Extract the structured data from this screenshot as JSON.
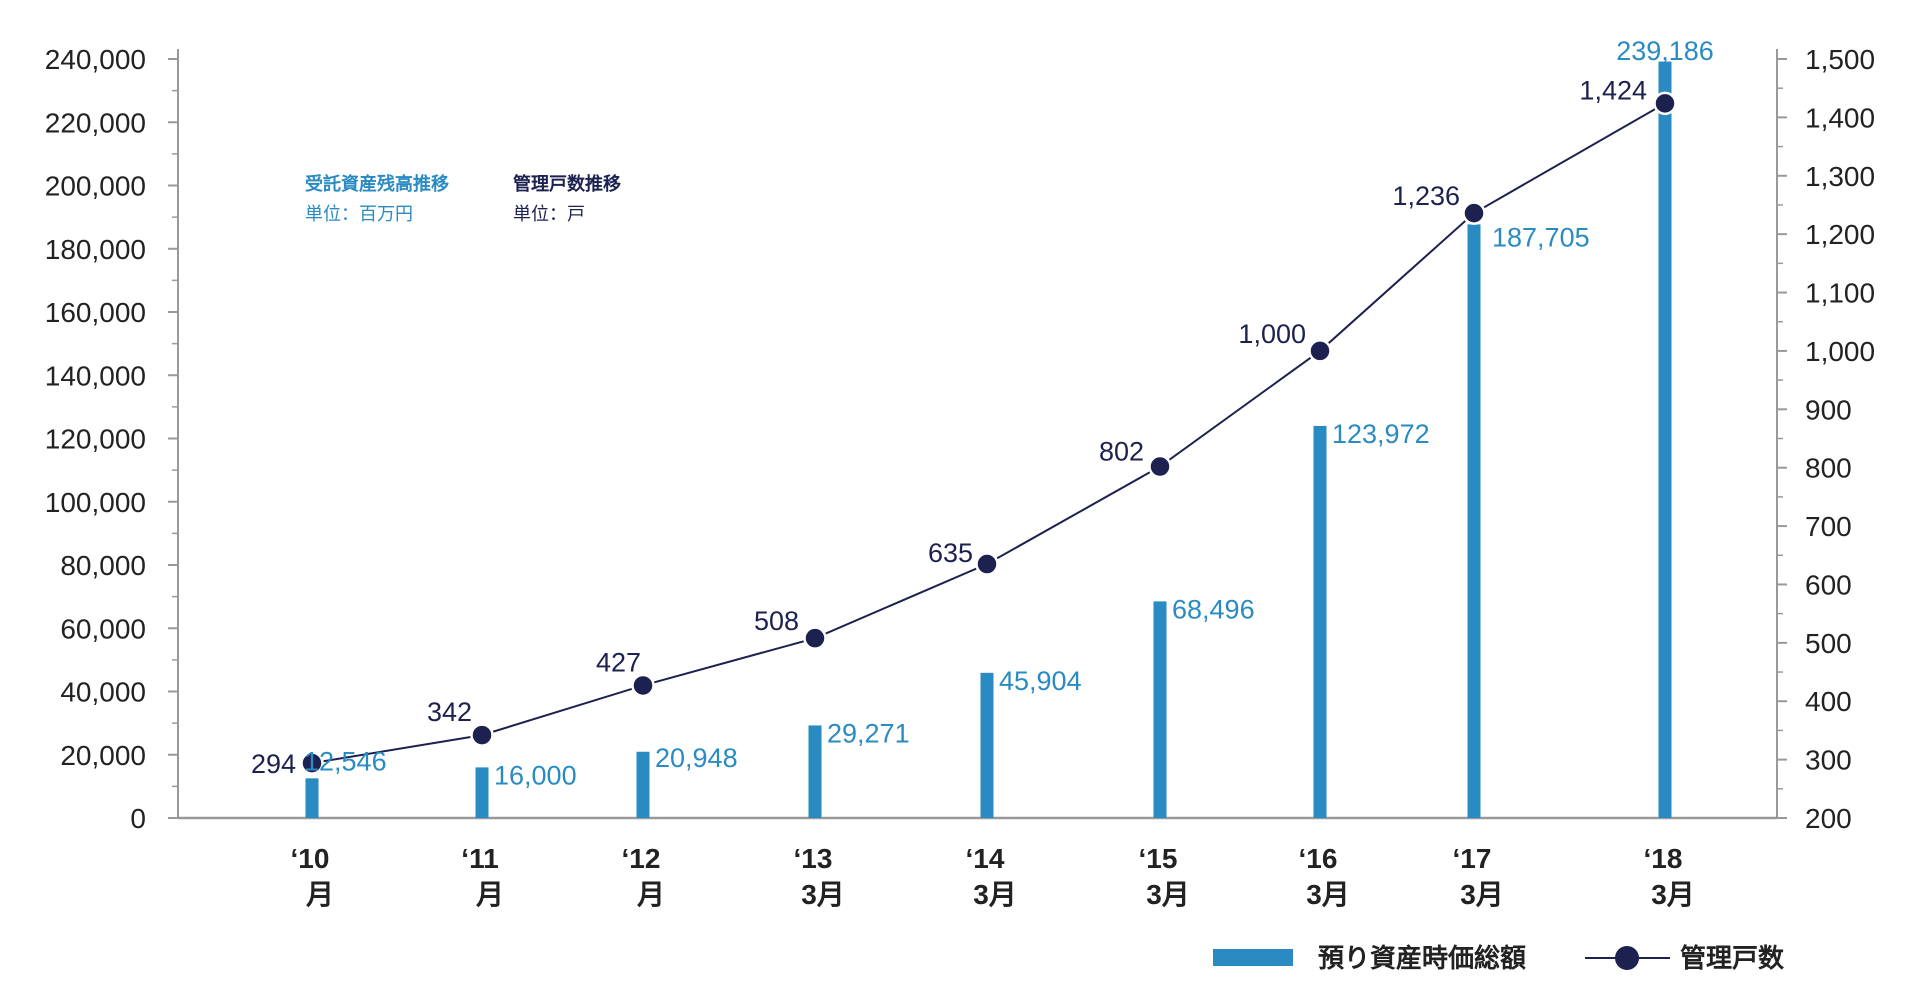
{
  "chart_data": {
    "type": "bar",
    "categories": [
      "‘10",
      "‘11",
      "‘12",
      "‘13",
      "‘14",
      "‘15",
      "‘16",
      "‘17",
      "‘18"
    ],
    "category_sublabels": [
      "月",
      "月",
      "月",
      "3月",
      "3月",
      "3月",
      "3月",
      "3月",
      "3月"
    ],
    "series": [
      {
        "name": "預り資産時価総額",
        "type": "bar",
        "axis": "left",
        "color": "#2a8bc2",
        "values": [
          12546,
          16000,
          20948,
          29271,
          45904,
          68496,
          123972,
          187705,
          239186
        ],
        "labels": [
          "12,546",
          "16,000",
          "20,948",
          "29,271",
          "45,904",
          "68,496",
          "123,972",
          "187,705",
          "239,186"
        ]
      },
      {
        "name": "管理戸数",
        "type": "line",
        "axis": "right",
        "color": "#1c2150",
        "values": [
          294,
          342,
          427,
          508,
          635,
          802,
          1000,
          1236,
          1424
        ],
        "labels": [
          "294",
          "342",
          "427",
          "508",
          "635",
          "802",
          "1,000",
          "1,236",
          "1,424"
        ]
      }
    ],
    "y_left": {
      "min": 0,
      "max": 240000,
      "ticks": [
        0,
        20000,
        40000,
        60000,
        80000,
        100000,
        120000,
        140000,
        160000,
        180000,
        200000,
        220000,
        240000
      ],
      "tick_labels": [
        "0",
        "20,000",
        "40,000",
        "60,000",
        "80,000",
        "100,000",
        "120,000",
        "140,000",
        "160,000",
        "180,000",
        "200,000",
        "220,000",
        "240,000"
      ]
    },
    "y_right": {
      "min": 200,
      "max": 1500,
      "ticks": [
        200,
        300,
        400,
        500,
        600,
        700,
        800,
        900,
        1000,
        1100,
        1200,
        1300,
        1400,
        1500
      ],
      "tick_labels": [
        "200",
        "300",
        "400",
        "500",
        "600",
        "700",
        "800",
        "900",
        "1,000",
        "1,100",
        "1,200",
        "1,300",
        "1,400",
        "1,500"
      ]
    },
    "notes": [
      {
        "title": "受託資産残高推移",
        "unit": "単位：百万円",
        "color": "#2a8bc2"
      },
      {
        "title": "管理戸数推移",
        "unit": "単位：戸",
        "color": "#1c2150"
      }
    ],
    "legend": {
      "placement": "bottom-right",
      "items": [
        {
          "label": "預り資産時価総額",
          "kind": "bar",
          "color": "#2a8bc2"
        },
        {
          "label": "管理戸数",
          "kind": "line-marker",
          "color": "#1c2150"
        }
      ]
    },
    "colors": {
      "axis": "#999999",
      "bar": "#2a8bc2",
      "line": "#1c2150"
    }
  }
}
